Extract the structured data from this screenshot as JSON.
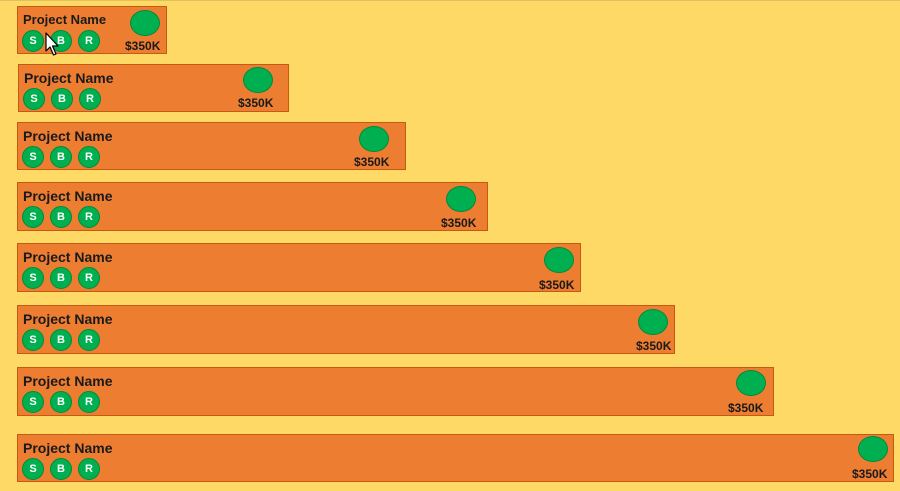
{
  "projects": [
    {
      "name": "Project Name",
      "amount": "$350K",
      "badges": [
        "S",
        "B",
        "R"
      ]
    },
    {
      "name": "Project Name",
      "amount": "$350K",
      "badges": [
        "S",
        "B",
        "R"
      ]
    },
    {
      "name": "Project Name",
      "amount": "$350K",
      "badges": [
        "S",
        "B",
        "R"
      ]
    },
    {
      "name": "Project Name",
      "amount": "$350K",
      "badges": [
        "S",
        "B",
        "R"
      ]
    },
    {
      "name": "Project Name",
      "amount": "$350K",
      "badges": [
        "S",
        "B",
        "R"
      ]
    },
    {
      "name": "Project Name",
      "amount": "$350K",
      "badges": [
        "S",
        "B",
        "R"
      ]
    },
    {
      "name": "Project Name",
      "amount": "$350K",
      "badges": [
        "S",
        "B",
        "R"
      ]
    },
    {
      "name": "Project Name",
      "amount": "$350K",
      "badges": [
        "S",
        "B",
        "R"
      ]
    }
  ],
  "colors": {
    "background": "#FFD966",
    "card": "#ED7D31",
    "card_border": "#C55A11",
    "status": "#00B050"
  },
  "icons": {
    "status": "status-dot-icon",
    "cursor": "pointer-cursor-icon"
  }
}
